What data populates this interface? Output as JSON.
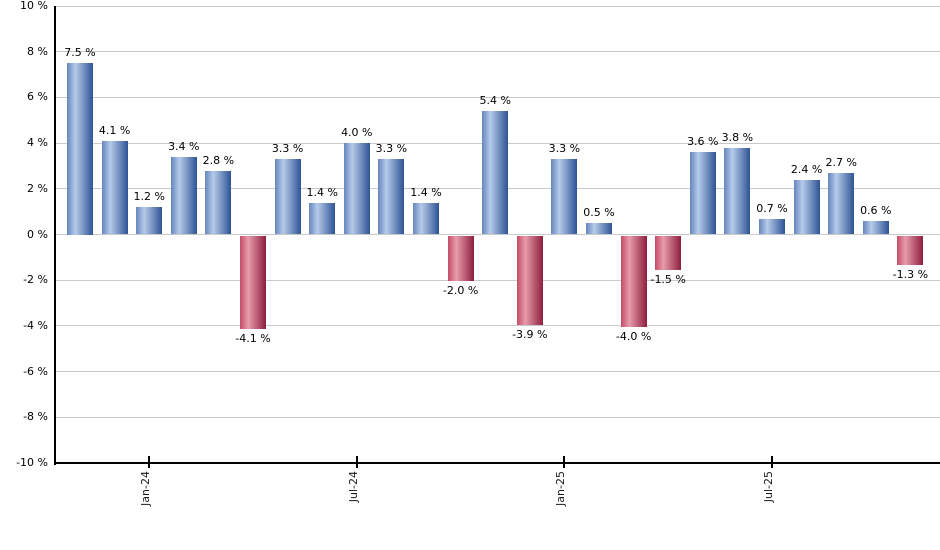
{
  "chart_data": {
    "type": "bar",
    "title": "",
    "xlabel": "",
    "ylabel": "",
    "unit": "%",
    "ylim": [
      -10,
      10
    ],
    "ytick_step": 2,
    "grid": true,
    "legend": null,
    "ytick_labels": [
      "10 %",
      "8 %",
      "6 %",
      "4 %",
      "2 %",
      "0 %",
      "-2 %",
      "-4 %",
      "-6 %",
      "-8 %",
      "-10 %"
    ],
    "ytick_values": [
      10,
      8,
      6,
      4,
      2,
      0,
      -2,
      -4,
      -6,
      -8,
      -10
    ],
    "values": [
      7.5,
      4.1,
      1.2,
      3.4,
      2.8,
      -4.1,
      3.3,
      1.4,
      4.0,
      3.3,
      1.4,
      -2.0,
      5.4,
      -3.9,
      3.3,
      0.5,
      -4.0,
      -1.5,
      3.6,
      3.8,
      0.7,
      2.4,
      2.7,
      0.6,
      -1.3
    ],
    "bar_labels": [
      "7.5 %",
      "4.1 %",
      "1.2 %",
      "3.4 %",
      "2.8 %",
      "-4.1 %",
      "3.3 %",
      "1.4 %",
      "4.0 %",
      "3.3 %",
      "1.4 %",
      "-2.0 %",
      "5.4 %",
      "-3.9 %",
      "3.3 %",
      "0.5 %",
      "-4.0 %",
      "-1.5 %",
      "3.6 %",
      "3.8 %",
      "0.7 %",
      "2.4 %",
      "2.7 %",
      "0.6 %",
      "-1.3 %"
    ],
    "x_ticks": [
      {
        "label": "Jan-24",
        "bar_index": 2
      },
      {
        "label": "Jul-24",
        "bar_index": 8
      },
      {
        "label": "Jan-25",
        "bar_index": 14
      },
      {
        "label": "Jul-25",
        "bar_index": 20
      }
    ],
    "colors": {
      "positive_bar_gradient": [
        "#6585bd",
        "#b6cbea",
        "#2e5394"
      ],
      "negative_bar_gradient": [
        "#c34b66",
        "#e79cab",
        "#8e1e3e"
      ],
      "gridline": "#c9c9c9",
      "axis": "#000000",
      "label_text": "#000000"
    }
  }
}
